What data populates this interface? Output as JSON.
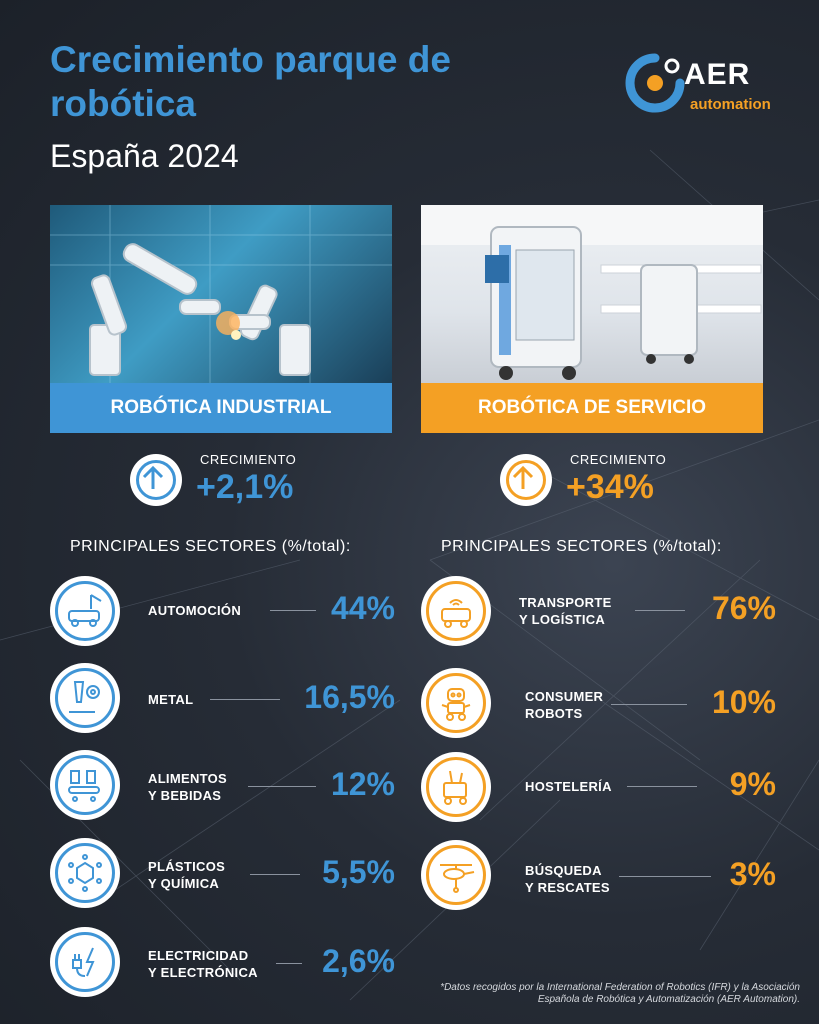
{
  "header": {
    "title": "Crecimiento parque de robótica",
    "subtitle": "España 2024"
  },
  "logo": {
    "name": "AER",
    "tagline": "automation",
    "icon": "aer-logo-icon"
  },
  "colors": {
    "blue": "#3f95d6",
    "orange": "#f4a024",
    "background": "#262c36"
  },
  "industrial": {
    "banner": "ROBÓTICA INDUSTRIAL",
    "growth_label": "CRECIMIENTO",
    "growth_value": "+2,1%",
    "sectors_heading": "PRINCIPALES SECTORES (%/total):",
    "sectors": [
      {
        "name": "AUTOMOCIÓN",
        "value": "44%",
        "icon": "car-assembly-icon"
      },
      {
        "name": "METAL",
        "value": "16,5%",
        "icon": "metal-gear-icon"
      },
      {
        "name": "ALIMENTOS\nY BEBIDAS",
        "value": "12%",
        "icon": "food-conveyor-icon"
      },
      {
        "name": "PLÁSTICOS\nY QUÍMICA",
        "value": "5,5%",
        "icon": "molecule-icon"
      },
      {
        "name": "ELECTRICIDAD\nY ELECTRÓNICA",
        "value": "2,6%",
        "icon": "plug-lightning-icon"
      }
    ]
  },
  "service": {
    "banner": "ROBÓTICA DE SERVICIO",
    "growth_label": "CRECIMIENTO",
    "growth_value": "+34%",
    "sectors_heading": "PRINCIPALES SECTORES (%/total):",
    "sectors": [
      {
        "name": "TRANSPORTE\nY LOGÍSTICA",
        "value": "76%",
        "icon": "delivery-robot-icon"
      },
      {
        "name": "CONSUMER\nROBOTS",
        "value": "10%",
        "icon": "consumer-robot-icon"
      },
      {
        "name": "HOSTELERÍA",
        "value": "9%",
        "icon": "cleaning-cart-icon"
      },
      {
        "name": "BÚSQUEDA\nY RESCATES",
        "value": "3%",
        "icon": "helicopter-icon"
      }
    ]
  },
  "footnote": "*Datos recogidos por la International Federation of Robotics (IFR) y la Asociación Española de Robótica y Automatización (AER Automation)."
}
